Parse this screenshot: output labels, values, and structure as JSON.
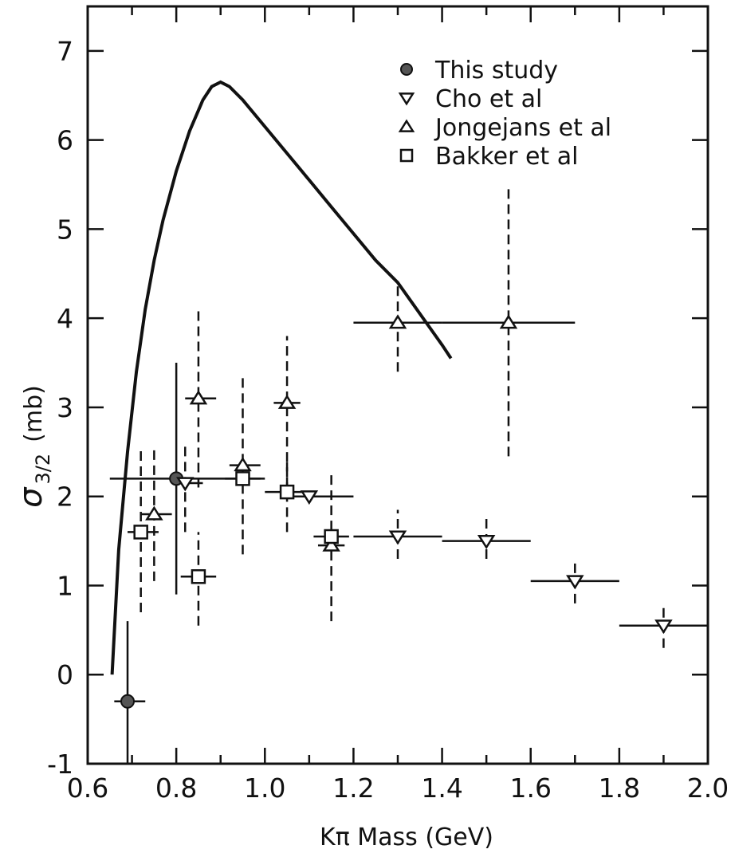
{
  "chart_data": {
    "type": "scatter",
    "xlabel": "Kπ Mass (GeV)",
    "ylabel_main": "σ",
    "ylabel_sub": "3/2",
    "ylabel_unit": "(mb)",
    "xlim": [
      0.6,
      2.0
    ],
    "ylim": [
      -1,
      7.5
    ],
    "xticks": [
      0.6,
      0.8,
      1.0,
      1.2,
      1.4,
      1.6,
      1.8,
      2.0
    ],
    "xtick_labels": [
      "0.6",
      "0.8",
      "1.0",
      "1.2",
      "1.4",
      "1.6",
      "1.8",
      "2.0"
    ],
    "yticks": [
      -1,
      0,
      1,
      2,
      3,
      4,
      5,
      6,
      7
    ],
    "ytick_labels": [
      "-1",
      "0",
      "1",
      "2",
      "3",
      "4",
      "5",
      "6",
      "7"
    ],
    "grid": false,
    "legend_position": "top-right",
    "legend": [
      {
        "label": "This study",
        "marker": "filled-circle"
      },
      {
        "label": "Cho et al",
        "marker": "down-triangle"
      },
      {
        "label": "Jongejans et al",
        "marker": "up-triangle"
      },
      {
        "label": "Bakker et al",
        "marker": "square"
      }
    ],
    "curve": {
      "x": [
        0.655,
        0.67,
        0.69,
        0.71,
        0.73,
        0.75,
        0.77,
        0.8,
        0.83,
        0.86,
        0.88,
        0.9,
        0.92,
        0.95,
        1.0,
        1.05,
        1.1,
        1.15,
        1.2,
        1.25,
        1.3,
        1.35,
        1.4,
        1.42
      ],
      "y": [
        0.0,
        1.4,
        2.5,
        3.4,
        4.1,
        4.65,
        5.1,
        5.65,
        6.1,
        6.45,
        6.6,
        6.65,
        6.6,
        6.45,
        6.15,
        5.85,
        5.55,
        5.25,
        4.95,
        4.65,
        4.4,
        4.05,
        3.7,
        3.55
      ]
    },
    "series": [
      {
        "legend_index": 0,
        "marker": "filled-circle",
        "err_style": "solid",
        "points": [
          {
            "x": 0.69,
            "y": -0.3,
            "xlo": 0.66,
            "xhi": 0.73,
            "ylo": -1.0,
            "yhi": 0.6
          },
          {
            "x": 0.8,
            "y": 2.2,
            "xlo": 0.65,
            "xhi": 1.0,
            "ylo": 0.9,
            "yhi": 3.5
          }
        ]
      },
      {
        "legend_index": 1,
        "marker": "down-triangle",
        "err_style": "dashed",
        "points": [
          {
            "x": 0.82,
            "y": 2.15,
            "xlo": 0.79,
            "xhi": 0.86,
            "ylo": 1.6,
            "yhi": 2.6
          },
          {
            "x": 1.1,
            "y": 2.0,
            "xlo": 1.05,
            "xhi": 1.2,
            "ylo": 2.0,
            "yhi": 2.0
          },
          {
            "x": 1.3,
            "y": 1.55,
            "xlo": 1.2,
            "xhi": 1.4,
            "ylo": 1.3,
            "yhi": 1.85
          },
          {
            "x": 1.5,
            "y": 1.5,
            "xlo": 1.4,
            "xhi": 1.6,
            "ylo": 1.3,
            "yhi": 1.8
          },
          {
            "x": 1.7,
            "y": 1.05,
            "xlo": 1.6,
            "xhi": 1.8,
            "ylo": 0.8,
            "yhi": 1.3
          },
          {
            "x": 1.9,
            "y": 0.55,
            "xlo": 1.8,
            "xhi": 2.0,
            "ylo": 0.3,
            "yhi": 0.8
          }
        ]
      },
      {
        "legend_index": 2,
        "marker": "up-triangle",
        "err_style": "dashed",
        "points": [
          {
            "x": 0.75,
            "y": 1.8,
            "xlo": 0.72,
            "xhi": 0.79,
            "ylo": 1.05,
            "yhi": 2.55
          },
          {
            "x": 0.85,
            "y": 3.1,
            "xlo": 0.82,
            "xhi": 0.89,
            "ylo": 2.1,
            "yhi": 4.1
          },
          {
            "x": 0.95,
            "y": 2.35,
            "xlo": 0.92,
            "xhi": 0.99,
            "ylo": 1.35,
            "yhi": 3.35
          },
          {
            "x": 1.05,
            "y": 3.05,
            "xlo": 1.02,
            "xhi": 1.08,
            "ylo": 2.05,
            "yhi": 3.8
          },
          {
            "x": 1.15,
            "y": 1.45,
            "xlo": 1.12,
            "xhi": 1.18,
            "ylo": 0.6,
            "yhi": 2.25
          },
          {
            "x": 1.3,
            "y": 3.95,
            "xlo": 1.2,
            "xhi": 1.4,
            "ylo": 3.4,
            "yhi": 4.4
          },
          {
            "x": 1.55,
            "y": 3.95,
            "xlo": 1.4,
            "xhi": 1.7,
            "ylo": 2.45,
            "yhi": 5.5
          }
        ]
      },
      {
        "legend_index": 3,
        "marker": "square",
        "err_style": "dashed",
        "points": [
          {
            "x": 0.72,
            "y": 1.6,
            "xlo": 0.69,
            "xhi": 0.76,
            "ylo": 0.7,
            "yhi": 2.55
          },
          {
            "x": 0.85,
            "y": 1.1,
            "xlo": 0.81,
            "xhi": 0.89,
            "ylo": 0.55,
            "yhi": 1.6
          },
          {
            "x": 0.95,
            "y": 2.2,
            "xlo": 0.91,
            "xhi": 0.99,
            "ylo": 2.2,
            "yhi": 2.2
          },
          {
            "x": 1.05,
            "y": 2.05,
            "xlo": 1.0,
            "xhi": 1.09,
            "ylo": 1.6,
            "yhi": 2.4
          },
          {
            "x": 1.15,
            "y": 1.55,
            "xlo": 1.11,
            "xhi": 1.19,
            "ylo": 1.55,
            "yhi": 1.55
          }
        ]
      }
    ]
  }
}
